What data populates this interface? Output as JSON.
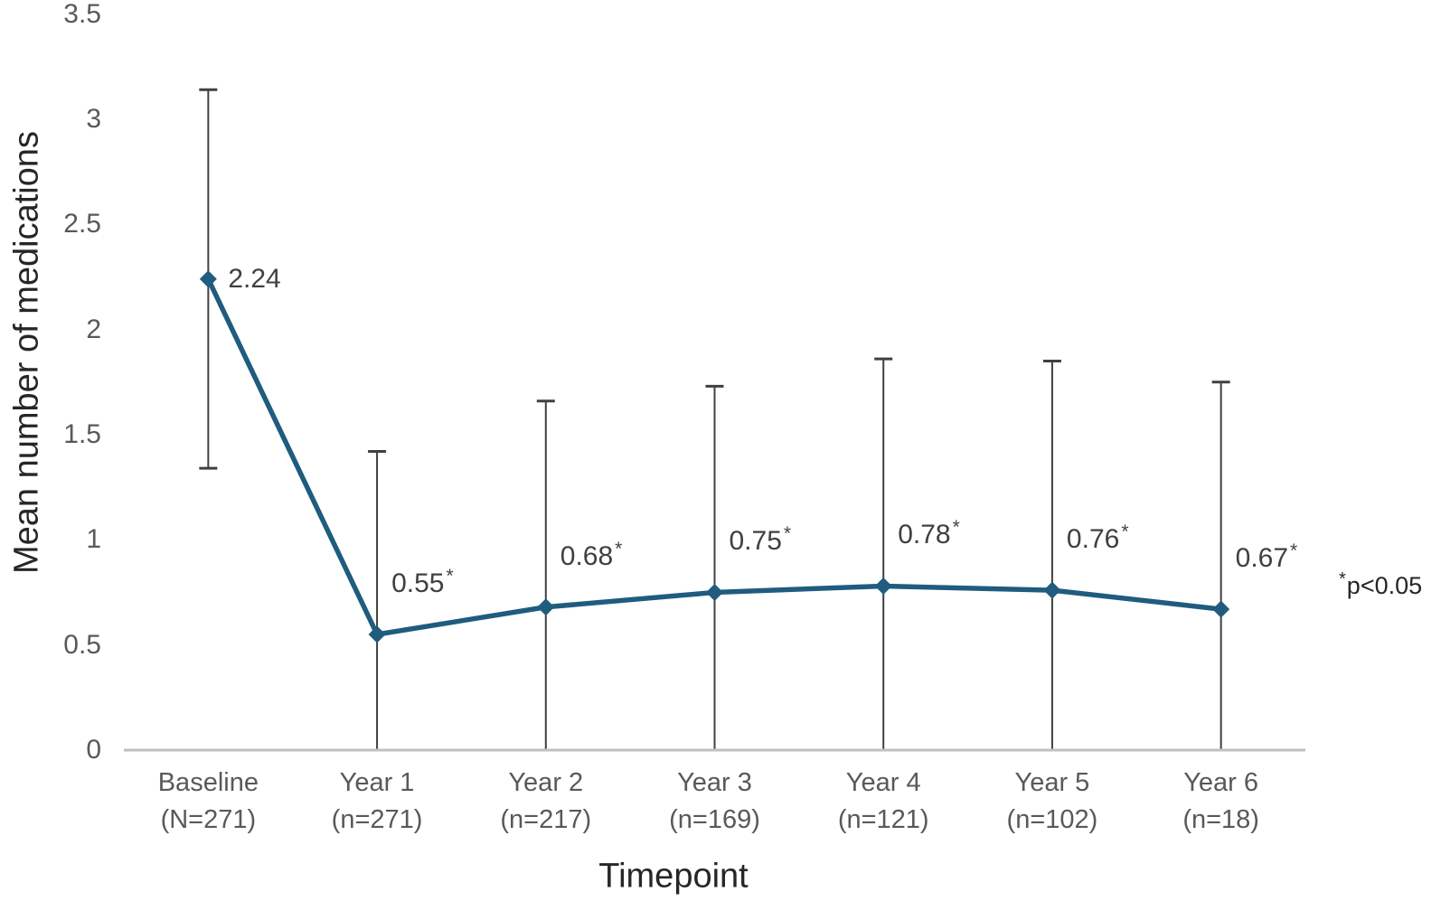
{
  "chart_data": {
    "type": "line",
    "title": "",
    "xlabel": "Timepoint",
    "ylabel": "Mean number of medications",
    "ylim": [
      0,
      3.5
    ],
    "yticks": [
      "0",
      "0.5",
      "1",
      "1.5",
      "2",
      "2.5",
      "3",
      "3.5"
    ],
    "ytick_values": [
      0,
      0.5,
      1,
      1.5,
      2,
      2.5,
      3,
      3.5
    ],
    "grid": false,
    "legend": "none",
    "categories": [
      {
        "line1": "Baseline",
        "line2": "(N=271)"
      },
      {
        "line1": "Year 1",
        "line2": "(n=271)"
      },
      {
        "line1": "Year 2",
        "line2": "(n=217)"
      },
      {
        "line1": "Year 3",
        "line2": "(n=169)"
      },
      {
        "line1": "Year 4",
        "line2": "(n=121)"
      },
      {
        "line1": "Year 5",
        "line2": "(n=102)"
      },
      {
        "line1": "Year 6",
        "line2": "(n=18)"
      }
    ],
    "series": [
      {
        "name": "Mean number of medications",
        "color": "#1F5C7E",
        "marker": "diamond",
        "points": [
          {
            "value": 2.24,
            "label": "2.24",
            "label_star": false,
            "error_upper": 3.14,
            "error_lower": 1.34,
            "label_pos": "right"
          },
          {
            "value": 0.55,
            "label": "0.55",
            "label_star": true,
            "error_upper": 1.42,
            "error_lower": 0,
            "label_pos": "above-right"
          },
          {
            "value": 0.68,
            "label": "0.68",
            "label_star": true,
            "error_upper": 1.66,
            "error_lower": 0,
            "label_pos": "above-right"
          },
          {
            "value": 0.75,
            "label": "0.75",
            "label_star": true,
            "error_upper": 1.73,
            "error_lower": 0,
            "label_pos": "above-right"
          },
          {
            "value": 0.78,
            "label": "0.78",
            "label_star": true,
            "error_upper": 1.86,
            "error_lower": 0,
            "label_pos": "above-right"
          },
          {
            "value": 0.76,
            "label": "0.76",
            "label_star": true,
            "error_upper": 1.85,
            "error_lower": 0,
            "label_pos": "above-right"
          },
          {
            "value": 0.67,
            "label": "0.67",
            "label_star": true,
            "error_upper": 1.75,
            "error_lower": 0,
            "label_pos": "above-right"
          }
        ]
      }
    ],
    "annotation": {
      "star": "*",
      "text": "p<0.05"
    },
    "error_bar_color": "#404040",
    "axis_line_color": "#BFBFBF"
  }
}
